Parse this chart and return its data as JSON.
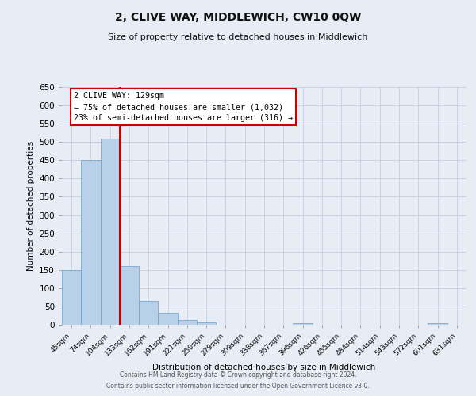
{
  "title": "2, CLIVE WAY, MIDDLEWICH, CW10 0QW",
  "subtitle": "Size of property relative to detached houses in Middlewich",
  "xlabel": "Distribution of detached houses by size in Middlewich",
  "ylabel": "Number of detached properties",
  "bar_labels": [
    "45sqm",
    "74sqm",
    "104sqm",
    "133sqm",
    "162sqm",
    "191sqm",
    "221sqm",
    "250sqm",
    "279sqm",
    "309sqm",
    "338sqm",
    "367sqm",
    "396sqm",
    "426sqm",
    "455sqm",
    "484sqm",
    "514sqm",
    "543sqm",
    "572sqm",
    "601sqm",
    "631sqm"
  ],
  "bar_values": [
    150,
    450,
    510,
    160,
    65,
    32,
    13,
    7,
    0,
    0,
    0,
    0,
    5,
    0,
    0,
    0,
    0,
    0,
    0,
    5,
    0
  ],
  "bar_color": "#b8d0ea",
  "bar_edge_color": "#6a9fc8",
  "grid_color": "#c8d4e4",
  "background_color": "#e8edf5",
  "ylim": [
    0,
    650
  ],
  "yticks": [
    0,
    50,
    100,
    150,
    200,
    250,
    300,
    350,
    400,
    450,
    500,
    550,
    600,
    650
  ],
  "red_line_color": "#cc0000",
  "annotation_title": "2 CLIVE WAY: 129sqm",
  "annotation_line1": "← 75% of detached houses are smaller (1,032)",
  "annotation_line2": "23% of semi-detached houses are larger (316) →",
  "annotation_box_facecolor": "#ffffff",
  "annotation_box_edgecolor": "#cc0000",
  "footer_line1": "Contains HM Land Registry data © Crown copyright and database right 2024.",
  "footer_line2": "Contains public sector information licensed under the Open Government Licence v3.0."
}
